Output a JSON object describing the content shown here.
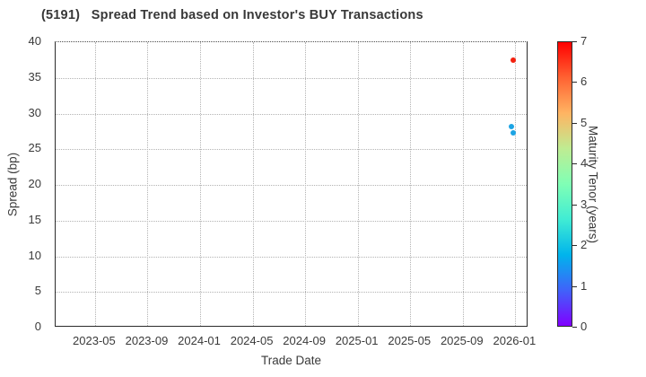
{
  "figure": {
    "title": "(5191)   Spread Trend based on Investor's BUY Transactions"
  },
  "chart_data": {
    "type": "scatter",
    "title": "(5191)   Spread Trend based on Investor's BUY Transactions",
    "xlabel": "Trade Date",
    "ylabel": "Spread (bp)",
    "ylim": [
      0,
      40
    ],
    "y_ticks": [
      0,
      5,
      10,
      15,
      20,
      25,
      30,
      35,
      40
    ],
    "x_axis": {
      "start": "2023-02",
      "end": "2026-02"
    },
    "x_ticks": [
      {
        "label": "2023-05",
        "date": "2023-05"
      },
      {
        "label": "2023-09",
        "date": "2023-09"
      },
      {
        "label": "2024-01",
        "date": "2024-01"
      },
      {
        "label": "2024-05",
        "date": "2024-05"
      },
      {
        "label": "2024-09",
        "date": "2024-09"
      },
      {
        "label": "2025-01",
        "date": "2025-01"
      },
      {
        "label": "2025-05",
        "date": "2025-05"
      },
      {
        "label": "2025-09",
        "date": "2025-09"
      },
      {
        "label": "2026-01",
        "date": "2026-01"
      }
    ],
    "grid": {
      "style": "dotted",
      "color": "#b3b3b3",
      "on": true
    },
    "legend": "colorbar-right",
    "points": [
      {
        "trade_date": "2025-12-26",
        "spread_bp": 37.5,
        "maturity_tenor_years": 7.0,
        "color": "#f4200e"
      },
      {
        "trade_date": "2025-12-23",
        "spread_bp": 28.2,
        "maturity_tenor_years": 2.0,
        "color": "#1ca4e4"
      },
      {
        "trade_date": "2025-12-28",
        "spread_bp": 27.3,
        "maturity_tenor_years": 2.0,
        "color": "#1ca4e4"
      }
    ],
    "colorbar": {
      "label": "Maturity Tenor (years)",
      "min": 0,
      "max": 7,
      "ticks": [
        0,
        1,
        2,
        3,
        4,
        5,
        6,
        7
      ],
      "gradient_bottom_to_top": [
        "#8000FF",
        "#4062FA",
        "#00B4EC",
        "#40ECD4",
        "#80FFB5",
        "#BFEC92",
        "#FFB462",
        "#FF6232",
        "#FF0000"
      ]
    }
  }
}
